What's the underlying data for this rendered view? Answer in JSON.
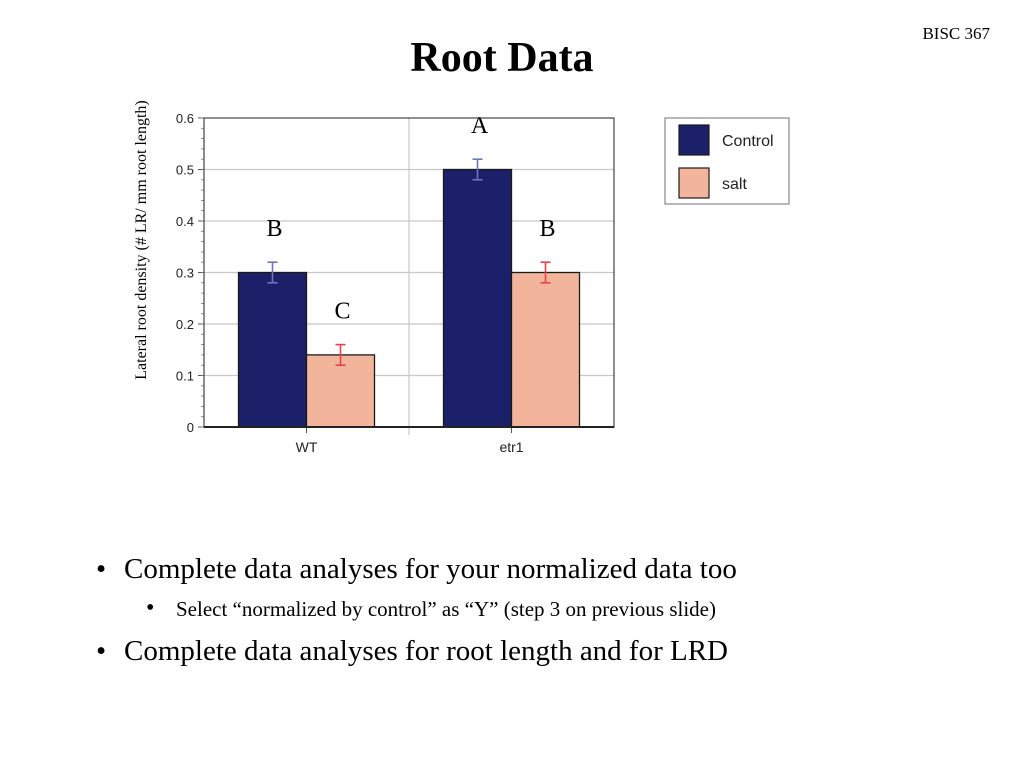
{
  "header": {
    "course": "BISC 367",
    "title": "Root Data"
  },
  "chart_data": {
    "type": "bar",
    "categories": [
      "WT",
      "etr1"
    ],
    "ylabel": "Lateral root density (# LR/ mm root length)",
    "xlabel": "",
    "ylim": [
      0,
      0.6
    ],
    "yticks": [
      "0",
      "0.1",
      "0.2",
      "0.3",
      "0.4",
      "0.5",
      "0.6"
    ],
    "grid": true,
    "legend_position": "right",
    "series": [
      {
        "name": "Control",
        "color": "#1c2068",
        "error_color": "#6a74bf",
        "values": [
          0.3,
          0.5
        ],
        "errors": [
          0.02,
          0.02
        ],
        "letters": [
          "B",
          "A"
        ]
      },
      {
        "name": "salt",
        "color": "#f2b59b",
        "error_color": "#e8424a",
        "values": [
          0.14,
          0.3
        ],
        "errors": [
          0.02,
          0.02
        ],
        "letters": [
          "C",
          "B"
        ]
      }
    ]
  },
  "bullets": [
    {
      "text": "Complete data analyses for your normalized data too",
      "sub": [
        "Select “normalized by control” as “Y” (step 3 on previous slide)"
      ]
    },
    {
      "text": "Complete data analyses for root length and for LRD",
      "sub": []
    }
  ]
}
